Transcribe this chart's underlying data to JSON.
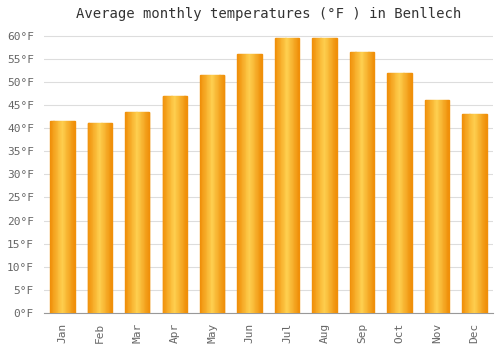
{
  "title": "Average monthly temperatures (°F ) in Benllech",
  "months": [
    "Jan",
    "Feb",
    "Mar",
    "Apr",
    "May",
    "Jun",
    "Jul",
    "Aug",
    "Sep",
    "Oct",
    "Nov",
    "Dec"
  ],
  "values": [
    41.5,
    41.0,
    43.5,
    47.0,
    51.5,
    56.0,
    59.5,
    59.5,
    56.5,
    52.0,
    46.0,
    43.0
  ],
  "bar_color_center": "#FFD050",
  "bar_color_edge": "#F0900A",
  "background_color": "#FFFFFF",
  "grid_color": "#DDDDDD",
  "ylim": [
    0,
    62
  ],
  "yticks": [
    0,
    5,
    10,
    15,
    20,
    25,
    30,
    35,
    40,
    45,
    50,
    55,
    60
  ],
  "title_fontsize": 10,
  "tick_fontsize": 8,
  "font_family": "monospace"
}
